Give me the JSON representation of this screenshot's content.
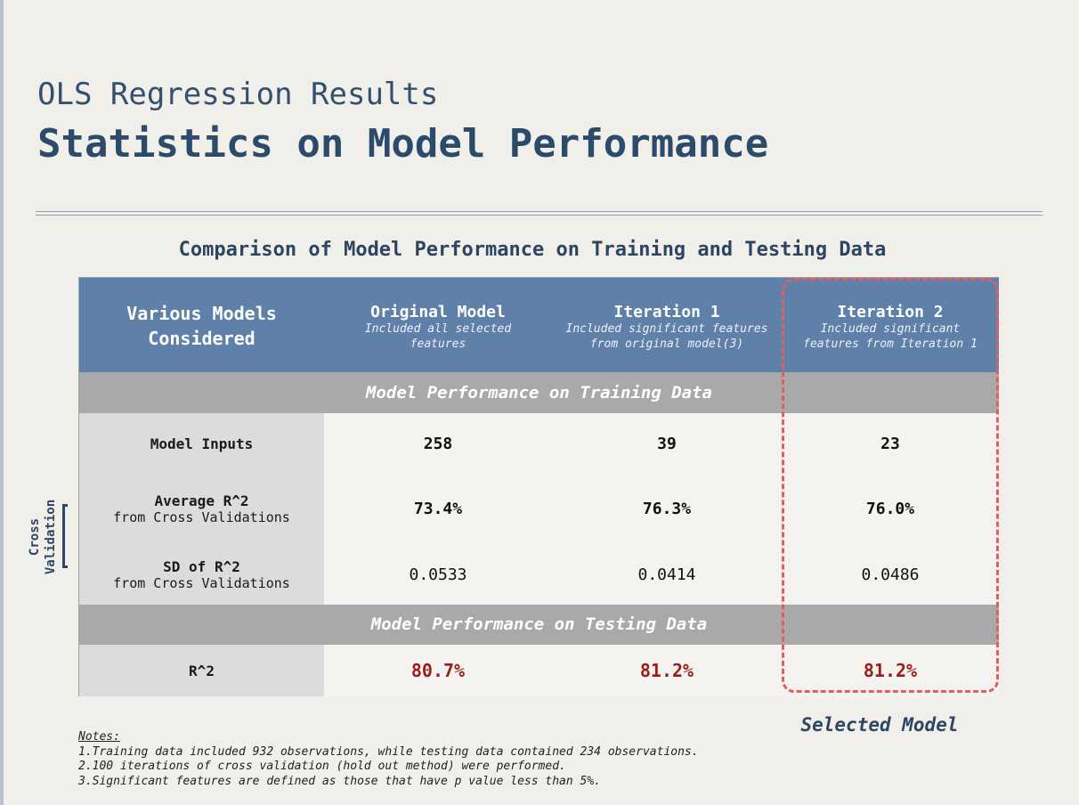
{
  "slide": {
    "title_top": "OLS Regression Results",
    "title_main": "Statistics on Model Performance",
    "subtitle": "Comparison of Model Performance on Training and Testing Data"
  },
  "table": {
    "headers": [
      {
        "title": "Various Models Considered",
        "desc": ""
      },
      {
        "title": "Original Model",
        "desc_line1": "Included all selected",
        "desc_line2": "features"
      },
      {
        "title": "Iteration 1",
        "desc_line1": "Included significant features",
        "desc_line2": "from original model(3)"
      },
      {
        "title": "Iteration 2",
        "desc_line1": "Included significant",
        "desc_line2": "features from Iteration 1"
      }
    ],
    "header_col0_line1": "Various Models",
    "header_col0_line2": "Considered",
    "band_training": "Model Performance on Training Data",
    "band_testing": "Model Performance on Testing Data",
    "rows": [
      {
        "label": "Model Inputs",
        "sub": "",
        "values": [
          "258",
          "39",
          "23"
        ]
      },
      {
        "label": "Average R^2",
        "sub": "from Cross Validations",
        "values": [
          "73.4%",
          "76.3%",
          "76.0%"
        ]
      },
      {
        "label": "SD of R^2",
        "sub": "from Cross Validations",
        "values": [
          "0.0533",
          "0.0414",
          "0.0486"
        ]
      }
    ],
    "test_row": {
      "label": "R^2",
      "values": [
        "80.7%",
        "81.2%",
        "81.2%"
      ]
    }
  },
  "selected_label": "Selected Model",
  "cross_validation": {
    "line1": "Cross",
    "line2": "Validation"
  },
  "notes": {
    "title": "Notes:",
    "items": [
      "1.Training data included 932 observations, while testing data contained 234 observations.",
      "2.100 iterations of cross validation (hold out method) were performed.",
      "3.Significant features are defined as those that have p value less than 5%."
    ]
  },
  "colors": {
    "header_blue": "#5e80a9",
    "band_gray": "#a9a9a9",
    "label_gray": "#dcdcdc",
    "highlight_red": "#9b1c1c",
    "dashed_red": "#e06060",
    "title_navy": "#2c4a6a"
  }
}
